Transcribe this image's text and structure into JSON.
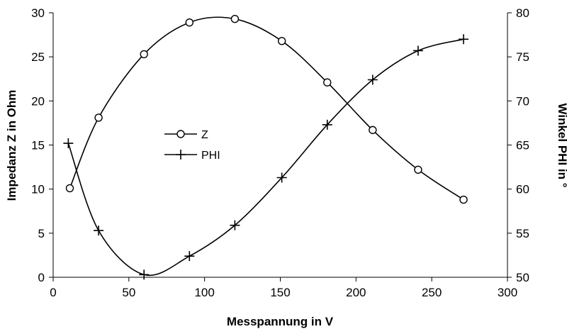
{
  "chart_data": {
    "type": "line",
    "title": "",
    "xlabel": "Messpannung in V",
    "ylabel_left": "Impedanz Z in Ohm",
    "ylabel_right": "Winkel PHI in °",
    "xlim": [
      0,
      300
    ],
    "ylim_left": [
      0,
      30
    ],
    "ylim_right": [
      50,
      80
    ],
    "x_ticks": [
      0,
      50,
      100,
      150,
      200,
      250,
      300
    ],
    "y_ticks_left": [
      0,
      5,
      10,
      15,
      20,
      25,
      30
    ],
    "y_ticks_right": [
      50,
      55,
      60,
      65,
      70,
      75,
      80
    ],
    "grid": false,
    "legend_position": "center-left",
    "series": [
      {
        "name": "Z",
        "axis": "left",
        "marker": "circle",
        "color": "#000000",
        "x": [
          11,
          30,
          60,
          90,
          120,
          151,
          181,
          211,
          241,
          271
        ],
        "y": [
          10.1,
          18.1,
          25.3,
          28.9,
          29.3,
          26.8,
          22.1,
          16.7,
          12.2,
          8.8
        ]
      },
      {
        "name": "PHI",
        "axis": "right",
        "marker": "plus",
        "color": "#000000",
        "x": [
          10,
          30,
          60,
          90,
          120,
          151,
          181,
          211,
          241,
          271
        ],
        "y": [
          65.2,
          55.3,
          50.3,
          52.4,
          55.9,
          61.3,
          67.3,
          72.4,
          75.7,
          77.0
        ]
      }
    ]
  }
}
